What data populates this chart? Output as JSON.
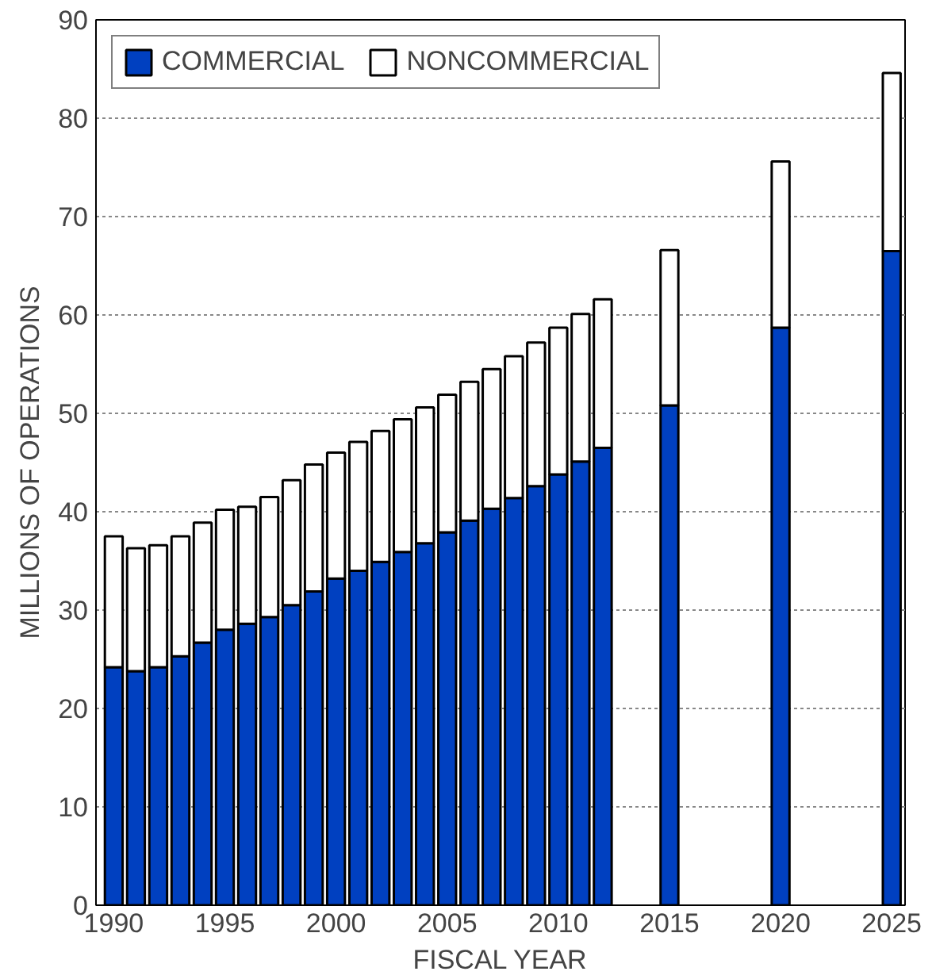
{
  "chart_data": {
    "type": "bar",
    "stacked": true,
    "xlabel": "FISCAL YEAR",
    "ylabel": "MILLIONS OF OPERATIONS",
    "x": [
      1990,
      1991,
      1992,
      1993,
      1994,
      1995,
      1996,
      1997,
      1998,
      1999,
      2000,
      2001,
      2002,
      2003,
      2004,
      2005,
      2006,
      2007,
      2008,
      2009,
      2010,
      2011,
      2012,
      2015,
      2020,
      2025
    ],
    "series": [
      {
        "name": "COMMERCIAL",
        "color": "#0040c0",
        "values": [
          24.2,
          23.8,
          24.2,
          25.3,
          26.7,
          28.0,
          28.6,
          29.3,
          30.5,
          31.9,
          33.2,
          34.0,
          34.9,
          35.9,
          36.8,
          37.9,
          39.1,
          40.3,
          41.4,
          42.6,
          43.8,
          45.1,
          46.5,
          50.8,
          58.7,
          66.5
        ]
      },
      {
        "name": "NONCOMMERCIAL",
        "color": "#ffffff",
        "values": [
          13.3,
          12.5,
          12.4,
          12.2,
          12.2,
          12.2,
          11.9,
          12.2,
          12.7,
          12.9,
          12.8,
          13.1,
          13.3,
          13.5,
          13.8,
          14.0,
          14.1,
          14.2,
          14.4,
          14.6,
          14.9,
          15.0,
          15.1,
          15.8,
          16.9,
          18.1
        ]
      }
    ],
    "xlim": [
      1989.2,
      2025.6
    ],
    "xticks": [
      1990,
      1995,
      2000,
      2005,
      2010,
      2015,
      2020,
      2025
    ],
    "ylim": [
      0,
      90
    ],
    "yticks": [
      0,
      10,
      20,
      30,
      40,
      50,
      60,
      70,
      80,
      90
    ],
    "grid": "y",
    "legend": "top left"
  }
}
